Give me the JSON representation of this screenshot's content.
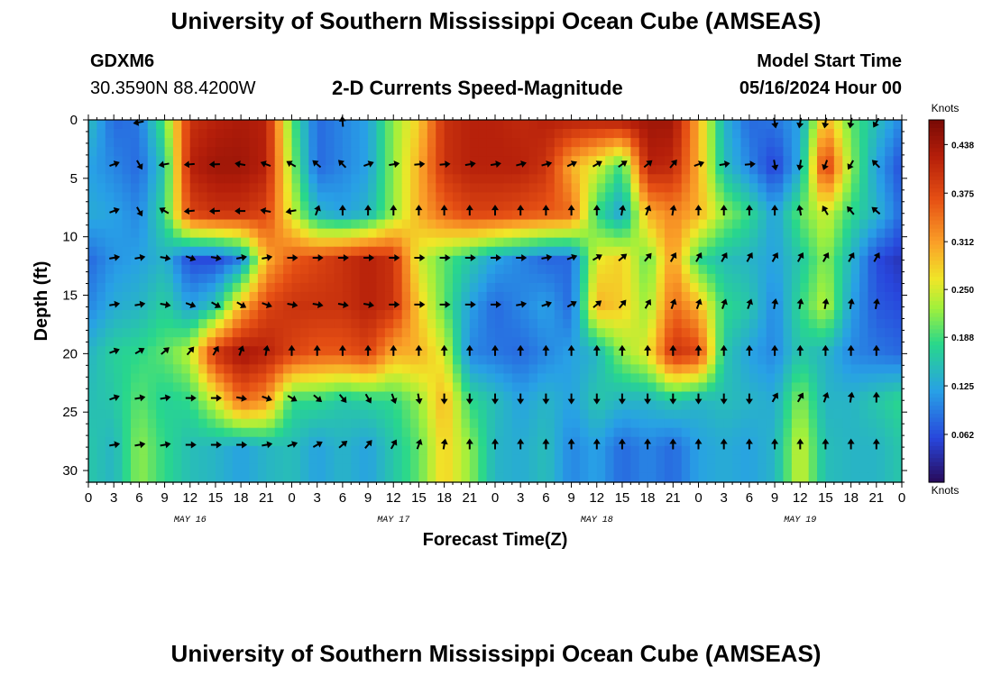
{
  "header": {
    "title": "University of Southern Mississippi Ocean Cube (AMSEAS)",
    "station": "GDXM6",
    "coords": "30.3590N  88.4200W",
    "subtitle": "2-D Currents Speed-Magnitude",
    "start_label": "Model Start Time",
    "start_value": "05/16/2024 Hour 00"
  },
  "footer": {
    "title": "University of Southern Mississippi Ocean Cube (AMSEAS)"
  },
  "chart_data": {
    "type": "heatmap",
    "title": "2-D Currents Speed-Magnitude",
    "xlabel": "Forecast Time(Z)",
    "ylabel": "Depth (ft)",
    "x_hours": [
      0,
      96
    ],
    "ylim": [
      0,
      31
    ],
    "x_tick_labels": [
      "0",
      "3",
      "6",
      "9",
      "12",
      "15",
      "18",
      "21",
      "0",
      "3",
      "6",
      "9",
      "12",
      "15",
      "18",
      "21",
      "0",
      "3",
      "6",
      "9",
      "12",
      "15",
      "18",
      "21",
      "0",
      "3",
      "6",
      "9",
      "12",
      "15",
      "18",
      "21",
      "0"
    ],
    "y_ticks": [
      0,
      5,
      10,
      15,
      20,
      25,
      30
    ],
    "month_labels": [
      {
        "text": "MAY 16",
        "hour": 12
      },
      {
        "text": "MAY 17",
        "hour": 36
      },
      {
        "text": "MAY 18",
        "hour": 60
      },
      {
        "text": "MAY 19",
        "hour": 84
      }
    ],
    "colorbar": {
      "unit": "Knots",
      "min": 0.0,
      "max": 0.47,
      "ticks": [
        "0.438",
        "0.375",
        "0.312",
        "0.250",
        "0.188",
        "0.125",
        "0.062"
      ],
      "tick_values": [
        0.438,
        0.375,
        0.312,
        0.25,
        0.188,
        0.125,
        0.062
      ]
    },
    "depths": [
      0,
      4,
      8,
      12,
      16,
      20,
      24,
      28
    ],
    "hours": [
      0,
      3,
      6,
      9,
      12,
      15,
      18,
      21,
      24,
      27,
      30,
      33,
      36,
      39,
      42,
      45,
      48,
      51,
      54,
      57,
      60,
      63,
      66,
      69,
      72,
      75,
      78,
      81,
      84,
      87,
      90,
      93,
      96
    ],
    "speed": [
      [
        0.15,
        0.08,
        0.09,
        0.2,
        0.4,
        0.42,
        0.43,
        0.42,
        0.2,
        0.08,
        0.1,
        0.12,
        0.22,
        0.28,
        0.4,
        0.42,
        0.42,
        0.41,
        0.42,
        0.42,
        0.42,
        0.43,
        0.44,
        0.44,
        0.3,
        0.14,
        0.08,
        0.09,
        0.12,
        0.3,
        0.2,
        0.15,
        0.1
      ],
      [
        0.12,
        0.1,
        0.08,
        0.16,
        0.42,
        0.44,
        0.44,
        0.42,
        0.22,
        0.08,
        0.1,
        0.12,
        0.22,
        0.3,
        0.4,
        0.42,
        0.42,
        0.42,
        0.4,
        0.3,
        0.25,
        0.18,
        0.42,
        0.41,
        0.3,
        0.15,
        0.1,
        0.05,
        0.13,
        0.4,
        0.22,
        0.12,
        0.06
      ],
      [
        0.13,
        0.12,
        0.1,
        0.18,
        0.38,
        0.4,
        0.4,
        0.38,
        0.25,
        0.14,
        0.12,
        0.14,
        0.22,
        0.3,
        0.35,
        0.38,
        0.38,
        0.37,
        0.36,
        0.35,
        0.18,
        0.12,
        0.3,
        0.33,
        0.3,
        0.22,
        0.18,
        0.12,
        0.2,
        0.25,
        0.18,
        0.14,
        0.08
      ],
      [
        0.08,
        0.11,
        0.12,
        0.14,
        0.06,
        0.06,
        0.1,
        0.3,
        0.36,
        0.38,
        0.4,
        0.42,
        0.4,
        0.25,
        0.2,
        0.16,
        0.12,
        0.1,
        0.08,
        0.08,
        0.26,
        0.28,
        0.2,
        0.32,
        0.18,
        0.15,
        0.14,
        0.12,
        0.16,
        0.22,
        0.14,
        0.06,
        0.04
      ],
      [
        0.1,
        0.13,
        0.14,
        0.17,
        0.12,
        0.16,
        0.3,
        0.38,
        0.4,
        0.4,
        0.4,
        0.42,
        0.4,
        0.28,
        0.2,
        0.12,
        0.08,
        0.1,
        0.12,
        0.08,
        0.3,
        0.28,
        0.22,
        0.35,
        0.3,
        0.18,
        0.16,
        0.1,
        0.18,
        0.24,
        0.12,
        0.07,
        0.06
      ],
      [
        0.14,
        0.17,
        0.18,
        0.2,
        0.24,
        0.4,
        0.44,
        0.42,
        0.38,
        0.36,
        0.36,
        0.38,
        0.3,
        0.3,
        0.25,
        0.1,
        0.09,
        0.08,
        0.1,
        0.12,
        0.14,
        0.22,
        0.26,
        0.4,
        0.38,
        0.16,
        0.12,
        0.1,
        0.16,
        0.14,
        0.1,
        0.09,
        0.08
      ],
      [
        0.15,
        0.16,
        0.2,
        0.17,
        0.18,
        0.25,
        0.35,
        0.32,
        0.18,
        0.18,
        0.16,
        0.17,
        0.18,
        0.22,
        0.3,
        0.18,
        0.15,
        0.12,
        0.14,
        0.12,
        0.16,
        0.14,
        0.14,
        0.16,
        0.14,
        0.15,
        0.14,
        0.13,
        0.22,
        0.14,
        0.14,
        0.16,
        0.18
      ],
      [
        0.16,
        0.14,
        0.22,
        0.18,
        0.15,
        0.14,
        0.12,
        0.14,
        0.15,
        0.12,
        0.14,
        0.12,
        0.16,
        0.2,
        0.28,
        0.22,
        0.14,
        0.13,
        0.15,
        0.1,
        0.12,
        0.08,
        0.1,
        0.08,
        0.12,
        0.13,
        0.12,
        0.14,
        0.25,
        0.15,
        0.14,
        0.14,
        0.16
      ]
    ],
    "arrows": {
      "depths": [
        0.2,
        3.8,
        7.8,
        11.8,
        15.8,
        19.8,
        23.8,
        27.8
      ],
      "hours": [
        0,
        3,
        6,
        9,
        12,
        15,
        18,
        21,
        24,
        27,
        30,
        33,
        36,
        39,
        42,
        45,
        48,
        51,
        54,
        57,
        60,
        63,
        66,
        69,
        72,
        75,
        78,
        81,
        84,
        87,
        90,
        93,
        96
      ],
      "angles_deg": [
        [
          null,
          null,
          170,
          null,
          null,
          null,
          null,
          null,
          null,
          null,
          -95,
          null,
          null,
          null,
          null,
          null,
          null,
          null,
          null,
          null,
          null,
          null,
          null,
          null,
          null,
          null,
          null,
          80,
          100,
          100,
          100,
          120,
          null
        ],
        [
          -20,
          -20,
          60,
          170,
          175,
          178,
          -170,
          -160,
          -150,
          -140,
          -135,
          -20,
          -10,
          -5,
          -5,
          -10,
          -10,
          -15,
          -15,
          -25,
          -30,
          -35,
          -40,
          -50,
          -20,
          -10,
          -5,
          80,
          100,
          110,
          120,
          -135,
          -130
        ],
        [
          -10,
          -20,
          60,
          -150,
          175,
          178,
          180,
          -170,
          170,
          -70,
          -90,
          -90,
          -90,
          -90,
          -90,
          -90,
          -90,
          -90,
          -90,
          -90,
          -90,
          -80,
          -70,
          -80,
          -90,
          -90,
          -90,
          -90,
          -100,
          -120,
          -130,
          -140,
          -150
        ],
        [
          -20,
          -10,
          -10,
          10,
          20,
          10,
          -10,
          -10,
          0,
          0,
          0,
          0,
          0,
          0,
          0,
          0,
          0,
          0,
          -10,
          -20,
          -30,
          -40,
          -50,
          -60,
          -60,
          -60,
          -60,
          -60,
          -60,
          -60,
          -60,
          -60,
          -60
        ],
        [
          -20,
          -10,
          -10,
          10,
          20,
          30,
          30,
          20,
          10,
          10,
          10,
          10,
          0,
          0,
          0,
          0,
          0,
          -10,
          -20,
          -30,
          -40,
          -50,
          -60,
          -70,
          -70,
          -70,
          -70,
          -80,
          -80,
          -80,
          -80,
          -80,
          -80
        ],
        [
          -10,
          -20,
          -30,
          -40,
          -50,
          -60,
          -70,
          -80,
          -90,
          -90,
          -90,
          -90,
          -90,
          -90,
          -90,
          -90,
          -90,
          -90,
          -90,
          -90,
          -90,
          -90,
          -90,
          -90,
          -90,
          -90,
          -90,
          -90,
          -90,
          -90,
          -90,
          -90,
          -90
        ],
        [
          -20,
          -20,
          -10,
          -10,
          0,
          0,
          10,
          20,
          30,
          40,
          50,
          60,
          70,
          80,
          90,
          90,
          90,
          90,
          90,
          90,
          90,
          90,
          90,
          90,
          90,
          90,
          90,
          -60,
          -60,
          -70,
          -80,
          -90,
          -80
        ],
        [
          -10,
          -10,
          -10,
          -10,
          0,
          0,
          0,
          -10,
          -20,
          -30,
          -40,
          -50,
          -60,
          -70,
          -80,
          -90,
          -90,
          -90,
          -90,
          -90,
          -90,
          -90,
          -90,
          -90,
          -90,
          -90,
          -90,
          -90,
          -90,
          -90,
          -90,
          -90,
          -90
        ]
      ]
    }
  }
}
